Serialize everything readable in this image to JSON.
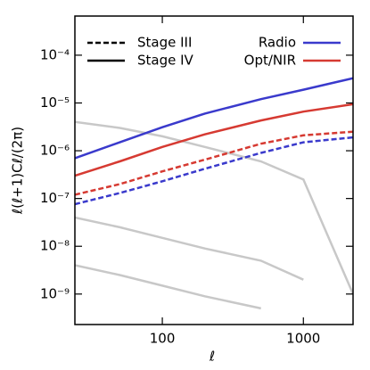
{
  "chart_data": {
    "type": "line",
    "x_label": "ℓ",
    "y_label": "ℓ(ℓ+1)Cℓ/(2π)",
    "log_x": true,
    "log_y": true,
    "xlim": [
      24,
      2250
    ],
    "ylim": [
      2.3e-10,
      0.00066
    ],
    "xticks": [
      100,
      1000
    ],
    "yticks": [
      {
        "value": 0.0001,
        "label": "10⁻⁴"
      },
      {
        "value": 1e-05,
        "label": "10⁻⁵"
      },
      {
        "value": 1e-06,
        "label": "10⁻⁶"
      },
      {
        "value": 1e-07,
        "label": "10⁻⁷"
      },
      {
        "value": 1e-08,
        "label": "10⁻⁸"
      },
      {
        "value": 1e-09,
        "label": "10⁻⁹"
      }
    ],
    "x": [
      24,
      50,
      100,
      200,
      500,
      1000,
      2250
    ],
    "series": [
      {
        "color": "#3a3acc",
        "dashed": false,
        "values": [
          7e-07,
          1.5e-06,
          3.1e-06,
          6e-06,
          1.2e-05,
          1.9e-05,
          3.3e-05
        ]
      },
      {
        "color": "#d63a32",
        "dashed": false,
        "values": [
          3e-07,
          6e-07,
          1.2e-06,
          2.2e-06,
          4.3e-06,
          6.6e-06,
          9.4e-06
        ]
      },
      {
        "color": "#d63a32",
        "dashed": true,
        "values": [
          1.2e-07,
          2e-07,
          3.7e-07,
          6.5e-07,
          1.4e-06,
          2.1e-06,
          2.5e-06
        ]
      },
      {
        "color": "#3a3acc",
        "dashed": true,
        "values": [
          7.6e-08,
          1.3e-07,
          2.3e-07,
          4.2e-07,
          9e-07,
          1.5e-06,
          1.9e-06
        ]
      }
    ],
    "background_series": [
      {
        "color": "#c8c8c8",
        "values": [
          4e-06,
          3e-06,
          2e-06,
          1.2e-06,
          6e-07,
          2.5e-07,
          1e-09
        ]
      },
      {
        "color": "#c8c8c8",
        "values": [
          4e-08,
          2.5e-08,
          1.5e-08,
          9e-09,
          5e-09,
          2e-09,
          null
        ]
      },
      {
        "color": "#c8c8c8",
        "values": [
          4e-09,
          2.5e-09,
          1.5e-09,
          9e-10,
          5e-10,
          null,
          null
        ]
      }
    ],
    "legend": [
      {
        "label": "Stage III",
        "color": "#000000",
        "dashed": true
      },
      {
        "label": "Stage IV",
        "color": "#000000",
        "dashed": false
      },
      {
        "label": "Radio",
        "color": "#3a3acc",
        "dashed": false
      },
      {
        "label": "Opt/NIR",
        "color": "#d63a32",
        "dashed": false
      }
    ]
  }
}
